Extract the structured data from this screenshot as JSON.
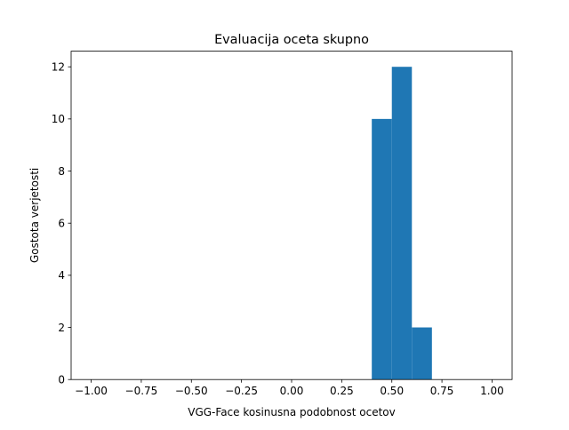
{
  "chart_data": {
    "type": "bar",
    "title": "Evaluacija oceta skupno",
    "xlabel": "VGG-Face kosinusna podobnost ocetov",
    "ylabel": "Gostota verjetosti",
    "xlim": [
      -1.1,
      1.1
    ],
    "ylim": [
      0,
      12.6
    ],
    "bin_width": 0.1,
    "bars": [
      {
        "x0": 0.4,
        "x1": 0.5,
        "value": 10
      },
      {
        "x0": 0.5,
        "x1": 0.6,
        "value": 12
      },
      {
        "x0": 0.6,
        "x1": 0.7,
        "value": 2
      }
    ],
    "bar_color": "#1f77b4",
    "x_ticks": [
      {
        "value": -1.0,
        "label": "−1.00"
      },
      {
        "value": -0.75,
        "label": "−0.75"
      },
      {
        "value": -0.5,
        "label": "−0.50"
      },
      {
        "value": -0.25,
        "label": "−0.25"
      },
      {
        "value": 0.0,
        "label": "0.00"
      },
      {
        "value": 0.25,
        "label": "0.25"
      },
      {
        "value": 0.5,
        "label": "0.50"
      },
      {
        "value": 0.75,
        "label": "0.75"
      },
      {
        "value": 1.0,
        "label": "1.00"
      }
    ],
    "y_ticks": [
      {
        "value": 0,
        "label": "0"
      },
      {
        "value": 2,
        "label": "2"
      },
      {
        "value": 4,
        "label": "4"
      },
      {
        "value": 6,
        "label": "6"
      },
      {
        "value": 8,
        "label": "8"
      },
      {
        "value": 10,
        "label": "10"
      },
      {
        "value": 12,
        "label": "12"
      }
    ],
    "grid": false,
    "legend": "none"
  }
}
